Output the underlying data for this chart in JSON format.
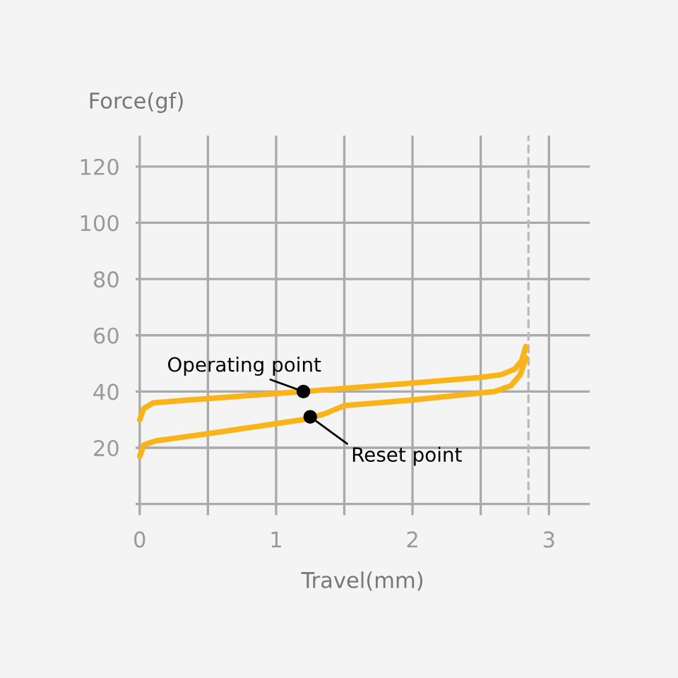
{
  "chart_data": {
    "type": "line",
    "xlabel": "Travel(mm)",
    "ylabel": "Force(gf)",
    "xlim": [
      -0.03,
      3.3
    ],
    "ylim": [
      -4,
      131
    ],
    "xticks": [
      0,
      {
        "value": 0.5,
        "label": null
      },
      1,
      {
        "value": 1.5,
        "label": null
      },
      2,
      {
        "value": 2.5,
        "label": null
      },
      3
    ],
    "yticks": [
      {
        "value": 0,
        "label": null
      },
      20,
      40,
      60,
      80,
      100,
      120
    ],
    "grid": true,
    "marker": "none",
    "line_style": "solid",
    "series": [
      {
        "color": "#fbb417",
        "x": [
          0,
          0.03,
          0.1,
          0.5,
          1.2,
          2,
          2.5,
          2.65,
          2.75,
          2.8,
          2.83
        ],
        "values": [
          30,
          34,
          36,
          37.5,
          40,
          43,
          45,
          46,
          48,
          51,
          56
        ]
      },
      {
        "color": "#fbb417",
        "x": [
          0,
          0.03,
          0.12,
          0.5,
          1.2,
          1.35,
          1.5,
          2,
          2.6,
          2.72,
          2.79,
          2.83
        ],
        "values": [
          17,
          21,
          22.5,
          25,
          30,
          32,
          35,
          37,
          40,
          42,
          46,
          52
        ]
      }
    ],
    "ref_lines": [
      {
        "axis": "x",
        "value": 2.85,
        "color": "#bbbbbb",
        "line_style": "dashed"
      }
    ],
    "annotations": [
      {
        "text": "Operating point",
        "x": 1.2,
        "y": 40
      },
      {
        "text": "Reset point",
        "x": 1.25,
        "y": 31
      }
    ]
  }
}
